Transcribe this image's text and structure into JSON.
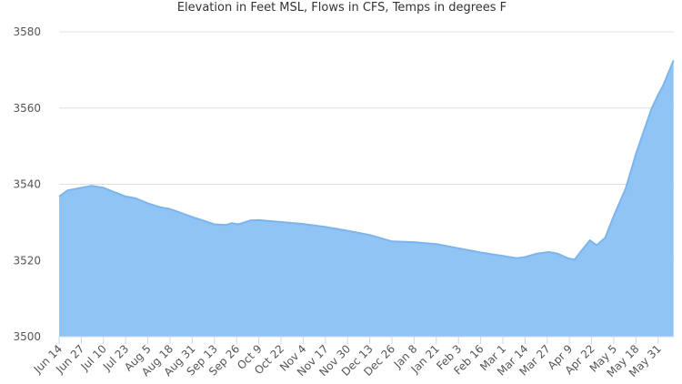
{
  "chart_data": {
    "type": "area",
    "title": "Elevation in Feet MSL, Flows in CFS, Temps in degrees F",
    "xlabel": "",
    "ylabel": "",
    "ylim": [
      3500,
      3580
    ],
    "yticks": [
      "3500",
      "3520",
      "3540",
      "3560",
      "3580"
    ],
    "xticks": [
      "Jun 14",
      "Jun 27",
      "Jul 10",
      "Jul 23",
      "Aug 5",
      "Aug 18",
      "Aug 31",
      "Sep 13",
      "Sep 26",
      "Oct 9",
      "Oct 22",
      "Nov 4",
      "Nov 17",
      "Nov 30",
      "Dec 13",
      "Dec 26",
      "Jan 8",
      "Jan 21",
      "Feb 3",
      "Feb 16",
      "Mar 1",
      "Mar 14",
      "Mar 27",
      "Apr 9",
      "Apr 22",
      "May 5",
      "May 18",
      "May 31"
    ],
    "grid": true,
    "legend": "none",
    "colors": {
      "fill": "#90c4f5",
      "line": "#7cb5ec",
      "grid": "#e0e0e0"
    },
    "series": [
      {
        "points": [
          [
            "Jun 14",
            3536.8
          ],
          [
            "Jun 19",
            3538.4
          ],
          [
            "Jun 27",
            3539.1
          ],
          [
            "Jul 3",
            3539.6
          ],
          [
            "Jul 10",
            3539.1
          ],
          [
            "Jul 16",
            3538.0
          ],
          [
            "Jul 23",
            3536.8
          ],
          [
            "Jul 29",
            3536.3
          ],
          [
            "Aug 5",
            3535.0
          ],
          [
            "Aug 12",
            3534.0
          ],
          [
            "Aug 18",
            3533.5
          ],
          [
            "Aug 31",
            3531.4
          ],
          [
            "Sep 13",
            3529.5
          ],
          [
            "Sep 20",
            3529.3
          ],
          [
            "Sep 23",
            3529.8
          ],
          [
            "Sep 27",
            3529.5
          ],
          [
            "Oct 4",
            3530.5
          ],
          [
            "Oct 9",
            3530.6
          ],
          [
            "Oct 22",
            3530.1
          ],
          [
            "Nov 4",
            3529.6
          ],
          [
            "Nov 17",
            3528.8
          ],
          [
            "Nov 30",
            3527.8
          ],
          [
            "Dec 13",
            3526.7
          ],
          [
            "Dec 26",
            3525.0
          ],
          [
            "Jan 8",
            3524.8
          ],
          [
            "Jan 21",
            3524.3
          ],
          [
            "Feb 3",
            3523.2
          ],
          [
            "Feb 16",
            3522.1
          ],
          [
            "Mar 1",
            3521.2
          ],
          [
            "Mar 9",
            3520.6
          ],
          [
            "Mar 14",
            3520.9
          ],
          [
            "Mar 21",
            3521.8
          ],
          [
            "Mar 28",
            3522.2
          ],
          [
            "Apr 2",
            3521.8
          ],
          [
            "Apr 8",
            3520.6
          ],
          [
            "Apr 12",
            3520.2
          ],
          [
            "Apr 16",
            3522.5
          ],
          [
            "Apr 21",
            3525.3
          ],
          [
            "Apr 25",
            3524.0
          ],
          [
            "Apr 30",
            3526.0
          ],
          [
            "May 5",
            3531.7
          ],
          [
            "May 12",
            3538.9
          ],
          [
            "May 18",
            3548.0
          ],
          [
            "May 27",
            3559.7
          ],
          [
            "May 31",
            3563.5
          ],
          [
            "Jun 3",
            3566.0
          ],
          [
            "Jun 9",
            3572.5
          ]
        ]
      }
    ]
  }
}
